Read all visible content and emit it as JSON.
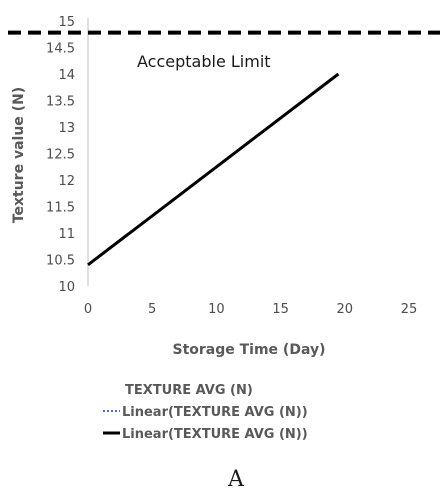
{
  "chart_data": {
    "type": "line",
    "title": "",
    "xlabel": "Storage Time (Day)",
    "ylabel": "Texture value (N)",
    "xlim": [
      0,
      25
    ],
    "ylim": [
      10,
      15
    ],
    "x_ticks": [
      0,
      5,
      10,
      15,
      20,
      25
    ],
    "y_ticks": [
      10,
      10.5,
      11,
      11.5,
      12,
      12.5,
      13,
      13.5,
      14,
      14.5,
      15
    ],
    "grid": false,
    "series": [
      {
        "name": "Linear(TEXTURE AVG (N))",
        "style": "solid",
        "color": "#000000",
        "x": [
          0,
          19.5
        ],
        "y": [
          10.4,
          14.0
        ]
      }
    ],
    "reference_line": {
      "label": "Acceptable Limit",
      "y": 14.78,
      "style": "dashed",
      "color": "#000000"
    },
    "legend": {
      "placement": "bottom",
      "entries": [
        {
          "label": "TEXTURE AVG (N)",
          "marker": "none",
          "color": "#000000"
        },
        {
          "label": "Linear(TEXTURE AVG (N))",
          "marker": "dotted-line",
          "color": "#4472c4"
        },
        {
          "label": "Linear(TEXTURE AVG (N))",
          "marker": "solid-line",
          "color": "#000000"
        }
      ]
    },
    "panel_label": "A"
  }
}
